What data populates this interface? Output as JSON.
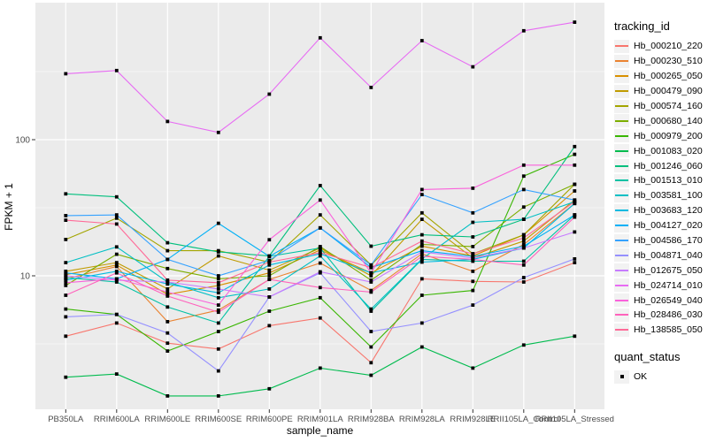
{
  "figure": {
    "x_axis_title": "sample_name",
    "y_axis_title": "FPKM + 1"
  },
  "legend": {
    "tracking_title": "tracking_id",
    "quant_title": "quant_status",
    "quant_items": [
      {
        "label": "OK",
        "marker": "black-square"
      }
    ]
  },
  "colors": {
    "panel_background": "#EBEBEB",
    "gridline": "#FFFFFF",
    "axis_text": "#4D4D4D",
    "marker": "#000000"
  },
  "chart_data": {
    "type": "line",
    "title": "",
    "xlabel": "sample_name",
    "ylabel": "FPKM + 1",
    "y_scale": "log10",
    "ylim": [
      1.05,
      1000
    ],
    "y_major_ticks": [
      10,
      100
    ],
    "y_minor_gridlines": [
      3.162,
      31.62,
      316.2
    ],
    "grid": "on",
    "legend_position": "right",
    "marker": "black-square",
    "x_categories": [
      "PB350LA",
      "RRIM600LA",
      "RRIM600LE",
      "RRIM600SE",
      "RRIM600PE",
      "RRIM901LA",
      "RRIM928BA",
      "RRIM928LA",
      "RRIM928LE",
      "RRII105LA_Control",
      "RRII105LA_Stressed"
    ],
    "series": [
      {
        "name": "Hb_000210_220",
        "color": "#F8766D",
        "values": [
          3.6,
          4.5,
          3.2,
          2.9,
          4.3,
          4.9,
          2.3,
          9.5,
          9.1,
          9.0,
          12.5
        ]
      },
      {
        "name": "Hb_000230_510",
        "color": "#EA8331",
        "values": [
          9.5,
          11.7,
          4.6,
          5.6,
          9.4,
          12.4,
          7.8,
          14.5,
          10.8,
          17,
          34
        ]
      },
      {
        "name": "Hb_000265_050",
        "color": "#D89000",
        "values": [
          10.2,
          12.0,
          7.3,
          8.5,
          10.5,
          15.5,
          10.5,
          16.5,
          14.0,
          20,
          42
        ]
      },
      {
        "name": "Hb_000479_090",
        "color": "#C09B00",
        "values": [
          10.8,
          12.5,
          8.0,
          14.0,
          11.0,
          16.0,
          10.0,
          26,
          13.5,
          18,
          36
        ]
      },
      {
        "name": "Hb_000574_160",
        "color": "#A3A500",
        "values": [
          18.5,
          26.5,
          15.3,
          15.3,
          12.6,
          28,
          12.0,
          29,
          14.5,
          20,
          47
        ]
      },
      {
        "name": "Hb_000680_140",
        "color": "#7CAE00",
        "values": [
          8.5,
          14.4,
          11.3,
          9.5,
          10.0,
          16.4,
          9.3,
          17.0,
          16.4,
          32,
          47
        ]
      },
      {
        "name": "Hb_000979_200",
        "color": "#39B600",
        "values": [
          5.7,
          5.2,
          2.8,
          3.9,
          5.5,
          6.9,
          3.0,
          7.2,
          7.8,
          54,
          78
        ]
      },
      {
        "name": "Hb_001083_020",
        "color": "#00BB4E",
        "values": [
          1.8,
          1.9,
          1.31,
          1.31,
          1.48,
          2.1,
          1.86,
          3.0,
          2.1,
          3.1,
          3.6
        ]
      },
      {
        "name": "Hb_001246_060",
        "color": "#00BF7D",
        "values": [
          40,
          38,
          17.5,
          15.0,
          14.0,
          46,
          16.5,
          20,
          19.3,
          26,
          89
        ]
      },
      {
        "name": "Hb_001513_010",
        "color": "#00C1A3",
        "values": [
          9.7,
          9.0,
          5.9,
          4.5,
          13.9,
          16.0,
          5.5,
          13.2,
          12.8,
          12.8,
          28
        ]
      },
      {
        "name": "Hb_003581_100",
        "color": "#00BFC4",
        "values": [
          12.5,
          16.3,
          9.0,
          6.9,
          8.0,
          14.0,
          5.7,
          13.3,
          24.7,
          26,
          35
        ]
      },
      {
        "name": "Hb_003683_120",
        "color": "#00BAE0",
        "values": [
          9.3,
          10.8,
          8.7,
          7.5,
          12.0,
          14.5,
          10.5,
          12.6,
          13.2,
          16,
          34
        ]
      },
      {
        "name": "Hb_004127_020",
        "color": "#00B0F6",
        "values": [
          10.5,
          9.5,
          13.2,
          24.3,
          13.9,
          22.5,
          11.5,
          15.3,
          13.9,
          16.5,
          28
        ]
      },
      {
        "name": "Hb_004586_170",
        "color": "#35A2FF",
        "values": [
          27.7,
          28,
          13.2,
          10.0,
          13.0,
          22.5,
          12.0,
          39.5,
          29,
          43,
          36
        ]
      },
      {
        "name": "Hb_004871_040",
        "color": "#9590FF",
        "values": [
          5.0,
          5.2,
          3.8,
          2.0,
          7.0,
          10.5,
          3.9,
          4.5,
          6.1,
          9.7,
          13.3
        ]
      },
      {
        "name": "Hb_012675_050",
        "color": "#C77CFF",
        "values": [
          10.0,
          9.3,
          9.0,
          8.0,
          7.0,
          10.7,
          9.0,
          15.0,
          13.5,
          16,
          21
        ]
      },
      {
        "name": "Hb_024714_010",
        "color": "#E76BF3",
        "values": [
          305,
          322,
          136,
          113,
          216,
          560,
          242,
          534,
          343,
          631,
          729
        ]
      },
      {
        "name": "Hb_026549_040",
        "color": "#FA62DB",
        "values": [
          8.9,
          9.5,
          7.6,
          6.1,
          18.4,
          36,
          10.5,
          43,
          44,
          65,
          65
        ]
      },
      {
        "name": "Hb_028486_030",
        "color": "#FF62BC",
        "values": [
          7.2,
          10.5,
          7.1,
          5.4,
          9.4,
          8.2,
          7.6,
          13.9,
          13.2,
          12,
          27
        ]
      },
      {
        "name": "Hb_138585_050",
        "color": "#FF6A98",
        "values": [
          25.6,
          24,
          9.3,
          8.9,
          12.6,
          14.8,
          11.5,
          18,
          14.5,
          19,
          35
        ]
      }
    ]
  }
}
